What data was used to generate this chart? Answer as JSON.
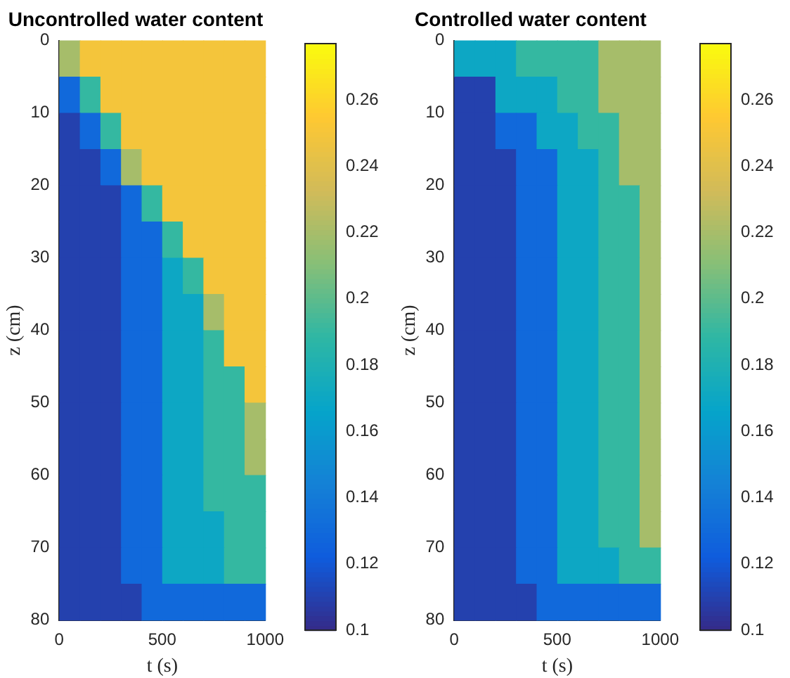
{
  "chart_data": [
    {
      "type": "heatmap",
      "title": "Uncontrolled water content",
      "xlabel": "t (s)",
      "ylabel": "z (cm)",
      "xlim": [
        0,
        1000
      ],
      "xticks": [
        0,
        500,
        1000
      ],
      "ylim": [
        80,
        0
      ],
      "yticks": [
        0,
        10,
        20,
        30,
        40,
        50,
        60,
        70,
        80
      ],
      "clim": [
        0.1,
        0.277
      ],
      "cticks": [
        0.1,
        0.12,
        0.14,
        0.16,
        0.18,
        0.2,
        0.22,
        0.24,
        0.26
      ],
      "cells": [
        [
          0.22,
          0.25,
          0.25,
          0.25,
          0.25,
          0.25,
          0.25,
          0.25,
          0.25,
          0.25
        ],
        [
          0.13,
          0.19,
          0.25,
          0.25,
          0.25,
          0.25,
          0.25,
          0.25,
          0.25,
          0.25
        ],
        [
          0.11,
          0.13,
          0.19,
          0.25,
          0.25,
          0.25,
          0.25,
          0.25,
          0.25,
          0.25
        ],
        [
          0.11,
          0.11,
          0.13,
          0.22,
          0.25,
          0.25,
          0.25,
          0.25,
          0.25,
          0.25
        ],
        [
          0.11,
          0.11,
          0.11,
          0.13,
          0.19,
          0.25,
          0.25,
          0.25,
          0.25,
          0.25
        ],
        [
          0.11,
          0.11,
          0.11,
          0.13,
          0.13,
          0.19,
          0.25,
          0.25,
          0.25,
          0.25
        ],
        [
          0.11,
          0.11,
          0.11,
          0.13,
          0.13,
          0.17,
          0.19,
          0.25,
          0.25,
          0.25
        ],
        [
          0.11,
          0.11,
          0.11,
          0.13,
          0.13,
          0.17,
          0.17,
          0.22,
          0.25,
          0.25
        ],
        [
          0.11,
          0.11,
          0.11,
          0.13,
          0.13,
          0.17,
          0.17,
          0.19,
          0.25,
          0.25
        ],
        [
          0.11,
          0.11,
          0.11,
          0.13,
          0.13,
          0.17,
          0.17,
          0.19,
          0.19,
          0.25
        ],
        [
          0.11,
          0.11,
          0.11,
          0.13,
          0.13,
          0.17,
          0.17,
          0.19,
          0.19,
          0.22
        ],
        [
          0.11,
          0.11,
          0.11,
          0.13,
          0.13,
          0.17,
          0.17,
          0.19,
          0.19,
          0.22
        ],
        [
          0.11,
          0.11,
          0.11,
          0.13,
          0.13,
          0.17,
          0.17,
          0.19,
          0.19,
          0.19
        ],
        [
          0.11,
          0.11,
          0.11,
          0.13,
          0.13,
          0.17,
          0.17,
          0.17,
          0.19,
          0.19
        ],
        [
          0.11,
          0.11,
          0.11,
          0.13,
          0.13,
          0.17,
          0.17,
          0.17,
          0.19,
          0.19
        ],
        [
          0.11,
          0.11,
          0.11,
          0.11,
          0.13,
          0.13,
          0.13,
          0.13,
          0.13,
          0.13
        ]
      ]
    },
    {
      "type": "heatmap",
      "title": "Controlled water content",
      "xlabel": "t (s)",
      "ylabel": "z (cm)",
      "xlim": [
        0,
        1000
      ],
      "xticks": [
        0,
        500,
        1000
      ],
      "ylim": [
        80,
        0
      ],
      "yticks": [
        0,
        10,
        20,
        30,
        40,
        50,
        60,
        70,
        80
      ],
      "clim": [
        0.1,
        0.277
      ],
      "cticks": [
        0.1,
        0.12,
        0.14,
        0.16,
        0.18,
        0.2,
        0.22,
        0.24,
        0.26
      ],
      "cells": [
        [
          0.17,
          0.17,
          0.17,
          0.19,
          0.19,
          0.19,
          0.19,
          0.22,
          0.22,
          0.22
        ],
        [
          0.11,
          0.11,
          0.17,
          0.17,
          0.17,
          0.19,
          0.19,
          0.22,
          0.22,
          0.22
        ],
        [
          0.11,
          0.11,
          0.13,
          0.13,
          0.17,
          0.17,
          0.19,
          0.19,
          0.22,
          0.22
        ],
        [
          0.11,
          0.11,
          0.11,
          0.13,
          0.13,
          0.17,
          0.17,
          0.19,
          0.22,
          0.22
        ],
        [
          0.11,
          0.11,
          0.11,
          0.13,
          0.13,
          0.17,
          0.17,
          0.19,
          0.19,
          0.22
        ],
        [
          0.11,
          0.11,
          0.11,
          0.13,
          0.13,
          0.17,
          0.17,
          0.19,
          0.19,
          0.22
        ],
        [
          0.11,
          0.11,
          0.11,
          0.13,
          0.13,
          0.17,
          0.17,
          0.19,
          0.19,
          0.22
        ],
        [
          0.11,
          0.11,
          0.11,
          0.13,
          0.13,
          0.17,
          0.17,
          0.19,
          0.19,
          0.22
        ],
        [
          0.11,
          0.11,
          0.11,
          0.13,
          0.13,
          0.17,
          0.17,
          0.19,
          0.19,
          0.22
        ],
        [
          0.11,
          0.11,
          0.11,
          0.13,
          0.13,
          0.17,
          0.17,
          0.19,
          0.19,
          0.22
        ],
        [
          0.11,
          0.11,
          0.11,
          0.13,
          0.13,
          0.17,
          0.17,
          0.19,
          0.19,
          0.22
        ],
        [
          0.11,
          0.11,
          0.11,
          0.13,
          0.13,
          0.17,
          0.17,
          0.19,
          0.19,
          0.22
        ],
        [
          0.11,
          0.11,
          0.11,
          0.13,
          0.13,
          0.17,
          0.17,
          0.19,
          0.19,
          0.22
        ],
        [
          0.11,
          0.11,
          0.11,
          0.13,
          0.13,
          0.17,
          0.17,
          0.19,
          0.19,
          0.22
        ],
        [
          0.11,
          0.11,
          0.11,
          0.13,
          0.13,
          0.17,
          0.17,
          0.17,
          0.19,
          0.19
        ],
        [
          0.11,
          0.11,
          0.11,
          0.11,
          0.13,
          0.13,
          0.13,
          0.13,
          0.13,
          0.13
        ]
      ]
    }
  ]
}
